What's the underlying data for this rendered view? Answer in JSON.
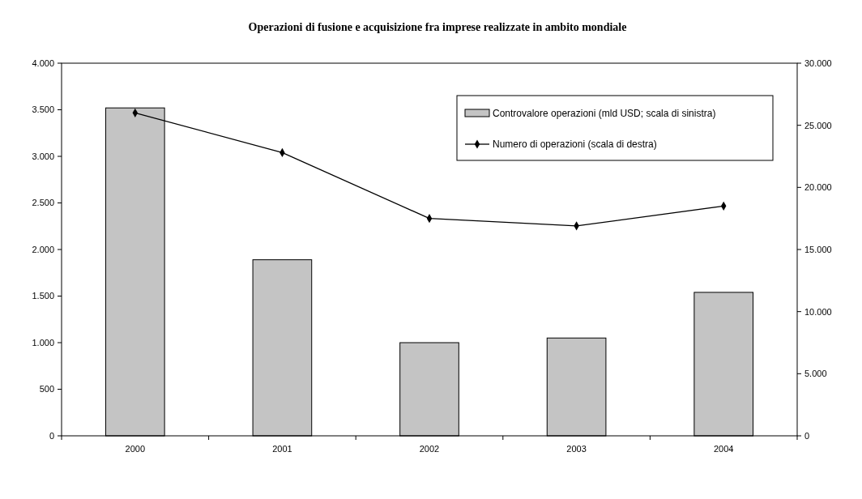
{
  "chart_data": {
    "type": "bar",
    "title": "Operazioni di fusione e acquisizione fra imprese realizzate in ambito mondiale",
    "categories": [
      "2000",
      "2001",
      "2002",
      "2003",
      "2004"
    ],
    "series": [
      {
        "name": "Controvalore operazioni (mld USD; scala di sinistra)",
        "color": "#c4c4c4",
        "values": [
          3520,
          1890,
          1000,
          1050,
          1540
        ]
      },
      {
        "name": "Numero di operazioni (scala di destra)",
        "type": "line",
        "axis": "y2",
        "color": "#000000",
        "marker": "diamond",
        "values": [
          26000,
          22800,
          17500,
          16900,
          18500
        ]
      }
    ],
    "ylim": [
      0,
      4000
    ],
    "yticks": [
      0,
      {
        "value": 500,
        "label": "500"
      },
      {
        "value": 1000,
        "label": "1.000"
      },
      {
        "value": 1500,
        "label": "1.500"
      },
      {
        "value": 2000,
        "label": "2.000"
      },
      {
        "value": 2500,
        "label": "2.500"
      },
      {
        "value": 3000,
        "label": "3.000"
      },
      {
        "value": 3500,
        "label": "3.500"
      },
      {
        "value": 4000,
        "label": "4.000"
      }
    ],
    "y2lim": [
      0,
      30000
    ],
    "y2ticks": [
      0,
      {
        "value": 5000,
        "label": "5.000"
      },
      {
        "value": 10000,
        "label": "10.000"
      },
      {
        "value": 15000,
        "label": "15.000"
      },
      {
        "value": 20000,
        "label": "20.000"
      },
      {
        "value": 25000,
        "label": "25.000"
      },
      {
        "value": 30000,
        "label": "30.000"
      }
    ],
    "legend": "top right",
    "grid": false
  }
}
